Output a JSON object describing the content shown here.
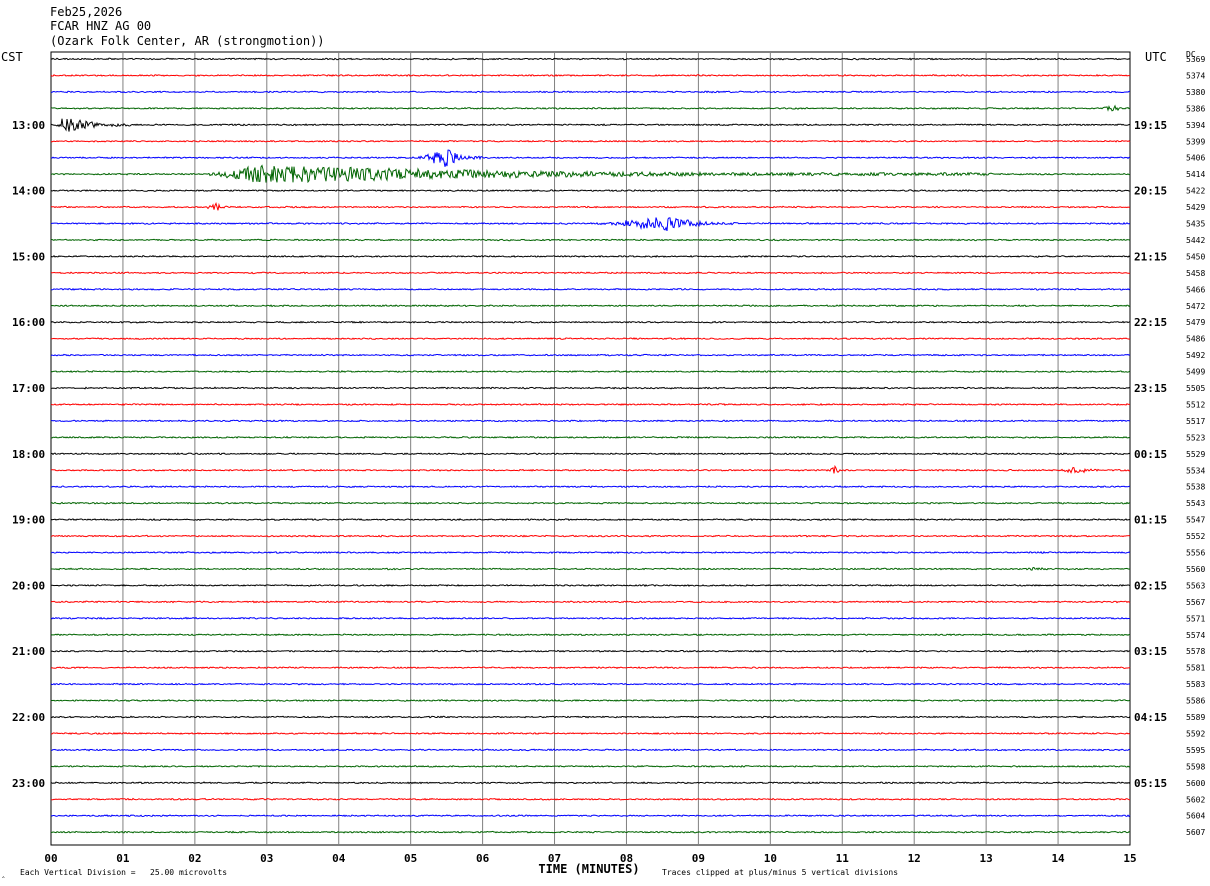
{
  "header": {
    "date": "Feb25,2026",
    "channel": "FCAR HNZ AG 00",
    "station": "(Ozark Folk Center, AR (strongmotion))"
  },
  "left_tz": "CST",
  "right_tz": "UTC",
  "dc_header": "DC",
  "footer": {
    "scale_note": "Each Vertical Division =   25.00 microvolts",
    "clip_note": "Traces clipped at plus/minus 5 vertical divisions",
    "corner_mark": "‸"
  },
  "colors": {
    "trace_cycle": [
      "#000000",
      "#ff0000",
      "#0000ff",
      "#006400"
    ],
    "grid": "#808080"
  },
  "chart_data": {
    "type": "line",
    "title": "FCAR HNZ AG 00",
    "xlabel": "TIME (MINUTES)",
    "ylabel": "",
    "xlim": [
      0,
      15
    ],
    "x_ticks": [
      "00",
      "01",
      "02",
      "03",
      "04",
      "05",
      "06",
      "07",
      "08",
      "09",
      "10",
      "11",
      "12",
      "13",
      "14",
      "15"
    ],
    "left_hour_labels": [
      "13:00",
      "14:00",
      "15:00",
      "16:00",
      "17:00",
      "18:00",
      "19:00",
      "20:00",
      "21:00",
      "22:00",
      "23:00"
    ],
    "right_hour_labels": [
      "19:15",
      "20:15",
      "21:15",
      "22:15",
      "23:15",
      "00:15",
      "01:15",
      "02:15",
      "03:15",
      "04:15",
      "05:15"
    ],
    "row_minutes": 15,
    "rows_per_hour_label": 4,
    "first_hour_label_row": 4,
    "dc_offsets": [
      5369,
      5374,
      5380,
      5386,
      5394,
      5399,
      5406,
      5414,
      5422,
      5429,
      5435,
      5442,
      5450,
      5458,
      5466,
      5472,
      5479,
      5486,
      5492,
      5499,
      5505,
      5512,
      5517,
      5523,
      5529,
      5534,
      5538,
      5543,
      5547,
      5552,
      5556,
      5560,
      5563,
      5567,
      5571,
      5574,
      5578,
      5581,
      5583,
      5586,
      5589,
      5592,
      5595,
      5598,
      5600,
      5602,
      5604,
      5607
    ],
    "events": [
      {
        "row": 4,
        "start_min": 0.05,
        "end_min": 1.1,
        "peak_min": 0.2,
        "amplitude_div": 5,
        "color_hint": "black"
      },
      {
        "row": 7,
        "start_min": 2.2,
        "end_min": 13.1,
        "peak_min": 2.9,
        "amplitude_div": 5
      },
      {
        "row": 6,
        "start_min": 5.1,
        "end_min": 6.0,
        "peak_min": 5.5,
        "amplitude_div": 5
      },
      {
        "row": 10,
        "start_min": 7.6,
        "end_min": 9.6,
        "peak_min": 8.6,
        "amplitude_div": 4
      },
      {
        "row": 9,
        "start_min": 2.1,
        "end_min": 2.6,
        "peak_min": 2.3,
        "amplitude_div": 2
      },
      {
        "row": 25,
        "start_min": 10.8,
        "end_min": 11.1,
        "peak_min": 10.9,
        "amplitude_div": 2
      },
      {
        "row": 25,
        "start_min": 14.0,
        "end_min": 14.8,
        "peak_min": 14.25,
        "amplitude_div": 2
      },
      {
        "row": 3,
        "start_min": 14.5,
        "end_min": 15.0,
        "peak_min": 14.8,
        "amplitude_div": 1.5
      },
      {
        "row": 31,
        "start_min": 13.5,
        "end_min": 14.4,
        "peak_min": 13.6,
        "amplitude_div": 1
      }
    ]
  }
}
